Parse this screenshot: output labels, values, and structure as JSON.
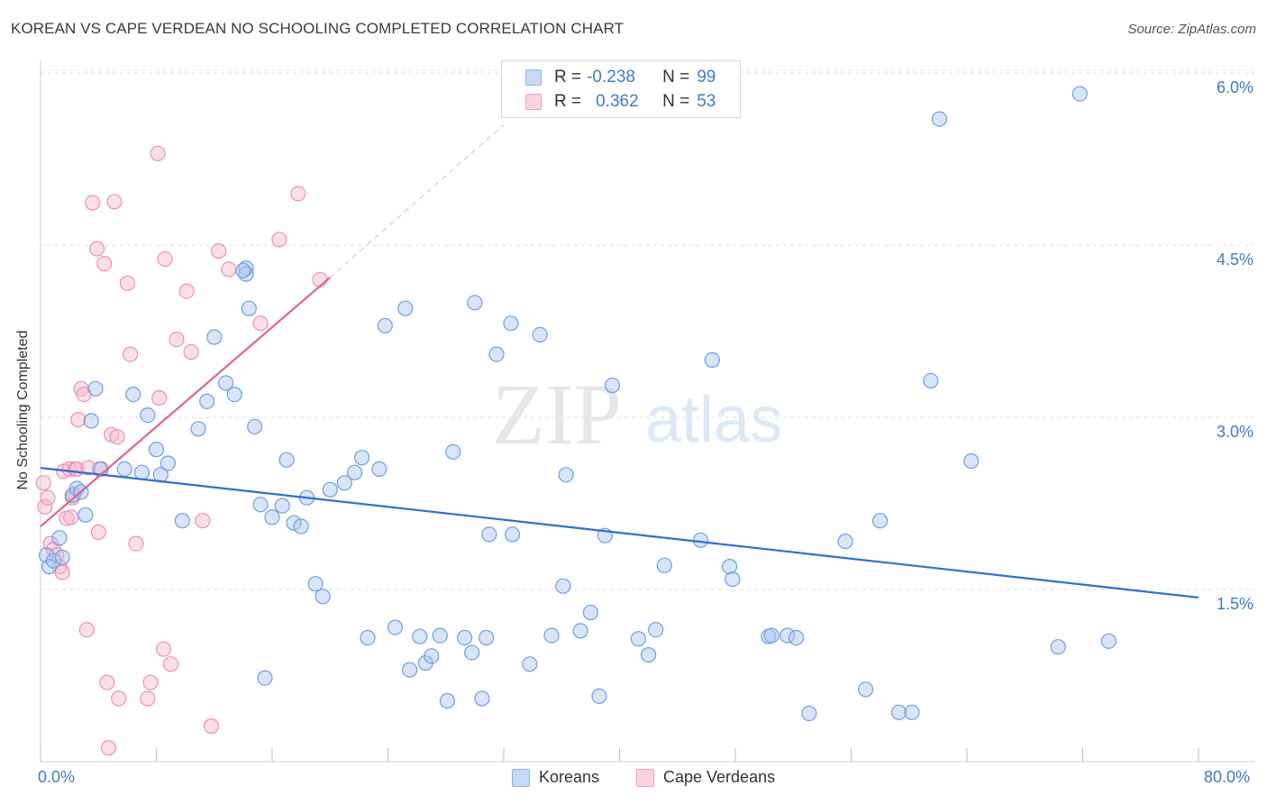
{
  "header": {
    "title": "KOREAN VS CAPE VERDEAN NO SCHOOLING COMPLETED CORRELATION CHART",
    "source": "Source: ZipAtlas.com"
  },
  "legend_top": {
    "rows": [
      {
        "r_label": "R =",
        "r_value": "-0.238",
        "n_label": "N =",
        "n_value": "99",
        "color": "#a9c6ef"
      },
      {
        "r_label": "R =",
        "r_value": "0.362",
        "n_label": "N =",
        "n_value": "53",
        "color": "#f6b9cc"
      }
    ]
  },
  "legend_bottom": {
    "items": [
      {
        "label": "Koreans",
        "color": "#a9c6ef"
      },
      {
        "label": "Cape Verdeans",
        "color": "#f6b9cc"
      }
    ]
  },
  "axes": {
    "ylabel": "No Schooling Completed",
    "x_tick_labels": [
      "0.0%",
      "80.0%"
    ],
    "y_tick_labels": [
      "6.0%",
      "4.5%",
      "3.0%",
      "1.5%"
    ]
  },
  "watermark": {
    "part1": "ZIP",
    "part2": "atlas"
  },
  "chart_data": {
    "type": "scatter",
    "title": "KOREAN VS CAPE VERDEAN NO SCHOOLING COMPLETED CORRELATION CHART",
    "xlabel": "",
    "ylabel": "No Schooling Completed",
    "xlim": [
      0,
      80
    ],
    "ylim": [
      0,
      6.2
    ],
    "y_ticks": [
      1.5,
      3.0,
      4.5,
      6.0
    ],
    "grid": true,
    "colors": {
      "koreans": "#6f9fe0",
      "cape_verdeans": "#ef93b1",
      "korean_trend": "#2f6fd0",
      "cape_verdean_trend": "#e0628c"
    },
    "series": [
      {
        "name": "Koreans",
        "points": [
          [
            0.4,
            1.8
          ],
          [
            0.6,
            1.7
          ],
          [
            0.9,
            1.75
          ],
          [
            1.3,
            1.95
          ],
          [
            1.5,
            1.78
          ],
          [
            2.2,
            2.32
          ],
          [
            2.5,
            2.38
          ],
          [
            2.8,
            2.35
          ],
          [
            3.1,
            2.15
          ],
          [
            3.5,
            2.97
          ],
          [
            3.8,
            3.25
          ],
          [
            4.1,
            2.55
          ],
          [
            5.8,
            2.55
          ],
          [
            6.4,
            3.2
          ],
          [
            7.0,
            2.52
          ],
          [
            7.4,
            3.02
          ],
          [
            8.0,
            2.72
          ],
          [
            8.3,
            2.5
          ],
          [
            8.8,
            2.6
          ],
          [
            9.8,
            2.1
          ],
          [
            10.9,
            2.9
          ],
          [
            11.5,
            3.14
          ],
          [
            12.0,
            3.7
          ],
          [
            13.4,
            3.2
          ],
          [
            12.8,
            3.3
          ],
          [
            14.2,
            4.3
          ],
          [
            14.4,
            3.95
          ],
          [
            14.2,
            4.25
          ],
          [
            14.0,
            4.28
          ],
          [
            14.8,
            2.92
          ],
          [
            15.5,
            0.73
          ],
          [
            15.2,
            2.24
          ],
          [
            16.0,
            2.13
          ],
          [
            16.7,
            2.23
          ],
          [
            17.0,
            2.63
          ],
          [
            17.5,
            2.08
          ],
          [
            18.0,
            2.05
          ],
          [
            18.4,
            2.3
          ],
          [
            19.0,
            1.55
          ],
          [
            19.5,
            1.44
          ],
          [
            20.0,
            2.37
          ],
          [
            21.0,
            2.43
          ],
          [
            21.7,
            2.52
          ],
          [
            22.2,
            2.65
          ],
          [
            22.6,
            1.08
          ],
          [
            23.4,
            2.55
          ],
          [
            23.8,
            3.8
          ],
          [
            24.5,
            1.17
          ],
          [
            25.2,
            3.95
          ],
          [
            25.5,
            0.8
          ],
          [
            26.2,
            1.09
          ],
          [
            26.6,
            0.86
          ],
          [
            27.0,
            0.92
          ],
          [
            27.6,
            1.1
          ],
          [
            28.1,
            0.53
          ],
          [
            28.5,
            2.7
          ],
          [
            29.3,
            1.08
          ],
          [
            29.8,
            0.95
          ],
          [
            30.5,
            0.55
          ],
          [
            30.8,
            1.08
          ],
          [
            30.0,
            4.0
          ],
          [
            31.0,
            1.98
          ],
          [
            31.5,
            3.55
          ],
          [
            32.6,
            1.98
          ],
          [
            32.5,
            3.82
          ],
          [
            33.8,
            0.85
          ],
          [
            34.5,
            3.72
          ],
          [
            35.3,
            1.1
          ],
          [
            36.1,
            1.53
          ],
          [
            36.3,
            2.5
          ],
          [
            37.3,
            1.14
          ],
          [
            38.0,
            1.3
          ],
          [
            38.6,
            0.57
          ],
          [
            39.0,
            1.97
          ],
          [
            39.5,
            3.28
          ],
          [
            41.3,
            1.07
          ],
          [
            42.0,
            0.93
          ],
          [
            42.5,
            1.15
          ],
          [
            43.1,
            1.71
          ],
          [
            45.6,
            1.93
          ],
          [
            46.4,
            3.5
          ],
          [
            47.6,
            1.7
          ],
          [
            47.8,
            1.59
          ],
          [
            50.3,
            1.09
          ],
          [
            50.5,
            1.1
          ],
          [
            51.6,
            1.1
          ],
          [
            52.2,
            1.08
          ],
          [
            53.1,
            0.42
          ],
          [
            55.6,
            1.92
          ],
          [
            57.0,
            0.63
          ],
          [
            58.0,
            2.1
          ],
          [
            59.3,
            0.43
          ],
          [
            60.2,
            0.43
          ],
          [
            61.5,
            3.32
          ],
          [
            62.1,
            5.6
          ],
          [
            64.3,
            2.62
          ],
          [
            70.3,
            1.0
          ],
          [
            71.8,
            5.82
          ],
          [
            73.8,
            1.05
          ]
        ]
      },
      {
        "name": "Cape Verdeans",
        "points": [
          [
            0.2,
            2.43
          ],
          [
            0.3,
            2.22
          ],
          [
            0.5,
            2.3
          ],
          [
            0.7,
            1.9
          ],
          [
            0.9,
            1.85
          ],
          [
            1.1,
            1.8
          ],
          [
            1.3,
            1.7
          ],
          [
            1.5,
            1.65
          ],
          [
            1.6,
            2.53
          ],
          [
            1.8,
            2.12
          ],
          [
            2.0,
            2.55
          ],
          [
            2.1,
            2.13
          ],
          [
            2.2,
            2.3
          ],
          [
            2.3,
            2.33
          ],
          [
            2.4,
            2.55
          ],
          [
            2.5,
            2.55
          ],
          [
            2.6,
            2.98
          ],
          [
            2.8,
            3.25
          ],
          [
            3.0,
            3.2
          ],
          [
            3.2,
            1.15
          ],
          [
            3.3,
            2.56
          ],
          [
            3.6,
            4.87
          ],
          [
            3.9,
            4.47
          ],
          [
            4.0,
            2.0
          ],
          [
            4.2,
            2.55
          ],
          [
            4.4,
            4.34
          ],
          [
            4.6,
            0.69
          ],
          [
            4.7,
            0.12
          ],
          [
            4.9,
            2.85
          ],
          [
            5.1,
            4.88
          ],
          [
            5.3,
            2.83
          ],
          [
            5.4,
            0.55
          ],
          [
            6.0,
            4.17
          ],
          [
            6.2,
            3.55
          ],
          [
            6.6,
            1.9
          ],
          [
            7.4,
            0.55
          ],
          [
            7.6,
            0.69
          ],
          [
            8.1,
            5.3
          ],
          [
            8.2,
            3.17
          ],
          [
            8.5,
            0.98
          ],
          [
            8.6,
            4.38
          ],
          [
            9.0,
            0.85
          ],
          [
            9.4,
            3.68
          ],
          [
            10.1,
            4.1
          ],
          [
            10.4,
            3.57
          ],
          [
            11.2,
            2.1
          ],
          [
            11.8,
            0.31
          ],
          [
            12.3,
            4.45
          ],
          [
            13.0,
            4.29
          ],
          [
            15.2,
            3.82
          ],
          [
            16.5,
            4.55
          ],
          [
            17.8,
            4.95
          ],
          [
            19.3,
            4.2
          ]
        ]
      }
    ],
    "trend_lines": [
      {
        "series": "Koreans",
        "x": [
          0,
          80
        ],
        "y": [
          2.56,
          1.43
        ]
      },
      {
        "series": "Cape Verdeans",
        "x": [
          0,
          20
        ],
        "y": [
          2.05,
          4.22
        ],
        "extended_dashed_to": [
          32,
          5.55
        ]
      }
    ]
  }
}
